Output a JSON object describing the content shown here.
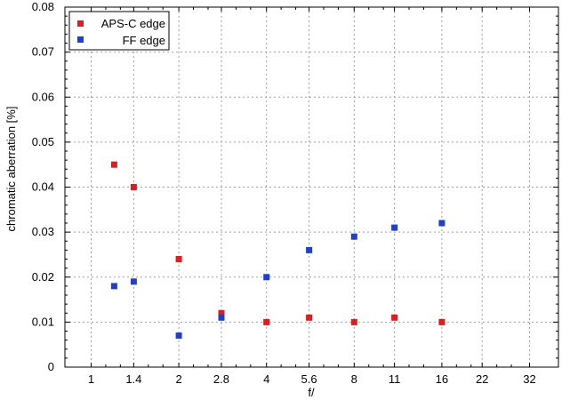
{
  "chart_data": {
    "type": "scatter",
    "title": "",
    "xlabel": "f/",
    "ylabel": "chromatic aberration [%]",
    "x_ticks": [
      "1",
      "1.4",
      "2",
      "2.8",
      "4",
      "5.6",
      "8",
      "11",
      "16",
      "22",
      "32"
    ],
    "y_ticks": [
      "0",
      "0.01",
      "0.02",
      "0.03",
      "0.04",
      "0.05",
      "0.06",
      "0.07",
      "0.08"
    ],
    "ylim": [
      0,
      0.08
    ],
    "grid": true,
    "legend_position": "top-left",
    "series": [
      {
        "name": "APS-C edge",
        "color": "#e41a1c",
        "points": [
          {
            "x": "1.2",
            "y": 0.045
          },
          {
            "x": "1.4",
            "y": 0.04
          },
          {
            "x": "2",
            "y": 0.024
          },
          {
            "x": "2.8",
            "y": 0.012
          },
          {
            "x": "4",
            "y": 0.01
          },
          {
            "x": "5.6",
            "y": 0.011
          },
          {
            "x": "8",
            "y": 0.01
          },
          {
            "x": "11",
            "y": 0.011
          },
          {
            "x": "16",
            "y": 0.01
          }
        ]
      },
      {
        "name": "FF edge",
        "color": "#1c3fd6",
        "points": [
          {
            "x": "1.2",
            "y": 0.018
          },
          {
            "x": "1.4",
            "y": 0.019
          },
          {
            "x": "2",
            "y": 0.007
          },
          {
            "x": "2.8",
            "y": 0.011
          },
          {
            "x": "4",
            "y": 0.02
          },
          {
            "x": "5.6",
            "y": 0.026
          },
          {
            "x": "8",
            "y": 0.029
          },
          {
            "x": "11",
            "y": 0.031
          },
          {
            "x": "16",
            "y": 0.032
          }
        ]
      }
    ]
  }
}
